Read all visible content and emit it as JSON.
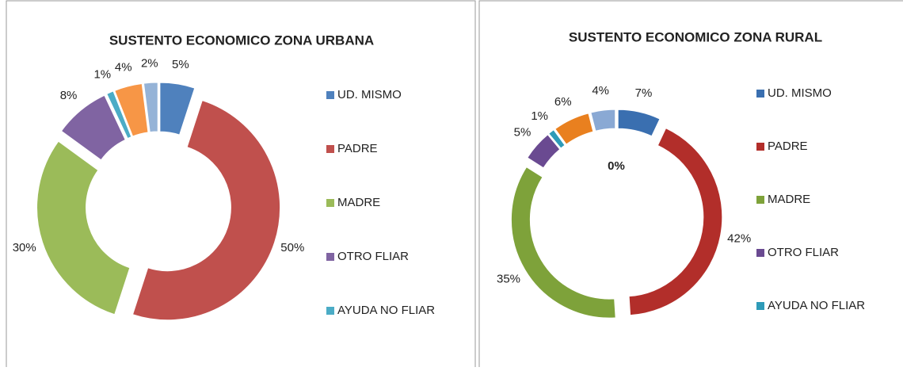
{
  "chart_data": [
    {
      "type": "donut",
      "title": "SUSTENTO ECONOMICO ZONA URBANA",
      "categories": [
        "UD. MISMO",
        "PADRE",
        "MADRE",
        "OTRO FLIAR",
        "AYUDA NO FLIAR",
        null,
        null
      ],
      "values": [
        5,
        50,
        30,
        8,
        1,
        4,
        2
      ],
      "value_labels": [
        "5%",
        "50%",
        "30%",
        "8%",
        "1%",
        "4%",
        "2%"
      ],
      "colors": [
        "#4f81bd",
        "#c0504d",
        "#9bbb59",
        "#8064a2",
        "#4bacc6",
        "#f79646",
        "#95b3d7"
      ]
    },
    {
      "type": "donut",
      "title": "SUSTENTO ECONOMICO ZONA RURAL",
      "categories": [
        "UD. MISMO",
        "PADRE",
        "MADRE",
        "OTRO FLIAR",
        "AYUDA NO FLIAR",
        null,
        null
      ],
      "values": [
        7,
        42,
        35,
        5,
        1,
        6,
        4
      ],
      "value_labels": [
        "7%",
        "42%",
        "35%",
        "5%",
        "1%",
        "6%",
        "4%"
      ],
      "colors": [
        "#3a6fb0",
        "#b22e2a",
        "#7ea23a",
        "#6a4a91",
        "#2e9bb8",
        "#e9801f",
        "#8aa9d4"
      ],
      "annotation": "0%"
    }
  ]
}
